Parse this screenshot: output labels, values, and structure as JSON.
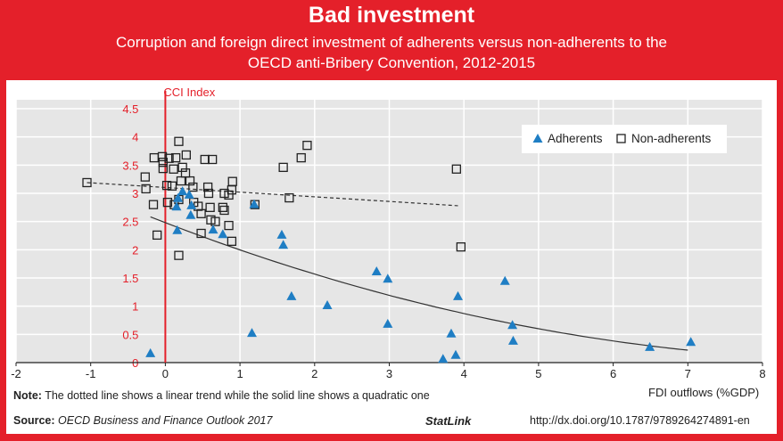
{
  "header": {
    "title": "Bad investment",
    "subtitle_line1": "Corruption and foreign direct investment of adherents versus non-adherents to the",
    "subtitle_line2": "OECD anti-Bribery Convention, 2012-2015"
  },
  "footer": {
    "note_label": "Note:",
    "note_text": " The dotted line shows a linear trend while the solid line shows a quadratic one",
    "source_label": "Source:",
    "source_text": " OECD Business and Finance Outlook 2017",
    "statlink": "StatLink",
    "doi": "http://dx.doi.org/10.1787/9789264274891-en"
  },
  "colors": {
    "frame": "#e4202a",
    "adherents": "#1f7ec4",
    "non_adherents": "#222222",
    "plot_bg": "#e6e6e6",
    "y_axis": "#e4202a"
  },
  "chart_data": {
    "type": "scatter",
    "xlabel": "FDI outflows (%GDP)",
    "ylabel": "CCI Index",
    "xlim": [
      -2,
      8
    ],
    "ylim": [
      0,
      4.5
    ],
    "x_ticks": [
      "-2",
      "-1",
      "0",
      "1",
      "2",
      "3",
      "4",
      "5",
      "6",
      "7",
      "8"
    ],
    "y_ticks": [
      "0",
      "0.5",
      "1",
      "1.5",
      "2",
      "2.5",
      "3",
      "3.5",
      "4",
      "4.5"
    ],
    "grid": true,
    "legend_placement": "top-right",
    "series": [
      {
        "name": "Adherents",
        "marker": "triangle",
        "points": [
          [
            -0.2,
            0.16
          ],
          [
            0.16,
            2.34
          ],
          [
            0.23,
            3.03
          ],
          [
            0.32,
            2.97
          ],
          [
            0.17,
            2.91
          ],
          [
            0.15,
            2.76
          ],
          [
            0.34,
            2.61
          ],
          [
            0.35,
            2.78
          ],
          [
            0.64,
            2.35
          ],
          [
            0.77,
            2.27
          ],
          [
            1.19,
            2.8
          ],
          [
            1.16,
            0.52
          ],
          [
            1.56,
            2.26
          ],
          [
            1.58,
            2.08
          ],
          [
            1.69,
            1.17
          ],
          [
            2.17,
            1.01
          ],
          [
            2.83,
            1.61
          ],
          [
            2.98,
            1.48
          ],
          [
            2.98,
            0.68
          ],
          [
            3.72,
            0.06
          ],
          [
            3.83,
            0.51
          ],
          [
            3.89,
            0.13
          ],
          [
            3.92,
            1.17
          ],
          [
            4.55,
            1.44
          ],
          [
            4.65,
            0.66
          ],
          [
            4.66,
            0.38
          ],
          [
            6.49,
            0.27
          ],
          [
            7.04,
            0.36
          ]
        ]
      },
      {
        "name": "Non-adherents",
        "marker": "square",
        "points": [
          [
            -1.05,
            3.19
          ],
          [
            -0.27,
            3.29
          ],
          [
            -0.26,
            3.08
          ],
          [
            -0.16,
            2.8
          ],
          [
            -0.11,
            2.26
          ],
          [
            -0.15,
            3.63
          ],
          [
            -0.04,
            3.65
          ],
          [
            -0.03,
            3.55
          ],
          [
            -0.03,
            3.44
          ],
          [
            0.05,
            3.62
          ],
          [
            0.14,
            3.63
          ],
          [
            0.11,
            3.43
          ],
          [
            0.18,
            3.92
          ],
          [
            0.28,
            3.68
          ],
          [
            0.23,
            3.46
          ],
          [
            0.27,
            3.36
          ],
          [
            0.02,
            3.14
          ],
          [
            0.09,
            3.13
          ],
          [
            0.21,
            3.22
          ],
          [
            0.33,
            3.22
          ],
          [
            0.37,
            3.11
          ],
          [
            0.03,
            2.84
          ],
          [
            0.12,
            2.8
          ],
          [
            0.18,
            2.89
          ],
          [
            0.38,
            2.84
          ],
          [
            0.44,
            2.77
          ],
          [
            0.48,
            2.64
          ],
          [
            0.53,
            3.6
          ],
          [
            0.63,
            3.6
          ],
          [
            0.57,
            3.11
          ],
          [
            0.58,
            3.0
          ],
          [
            0.6,
            2.75
          ],
          [
            0.61,
            2.53
          ],
          [
            0.67,
            2.5
          ],
          [
            0.77,
            2.75
          ],
          [
            0.79,
            2.7
          ],
          [
            0.79,
            3.0
          ],
          [
            0.85,
            2.97
          ],
          [
            0.89,
            3.06
          ],
          [
            0.9,
            3.21
          ],
          [
            0.85,
            2.43
          ],
          [
            0.48,
            2.29
          ],
          [
            0.89,
            2.15
          ],
          [
            0.18,
            1.9
          ],
          [
            1.2,
            2.8
          ],
          [
            1.58,
            3.46
          ],
          [
            1.66,
            2.92
          ],
          [
            1.82,
            3.63
          ],
          [
            1.9,
            3.85
          ],
          [
            3.9,
            3.43
          ],
          [
            3.96,
            2.05
          ]
        ]
      }
    ],
    "trend_lines": [
      {
        "kind": "linear",
        "style": "dotted",
        "from": [
          -1.05,
          3.19
        ],
        "to": [
          3.92,
          2.78
        ]
      },
      {
        "kind": "quadratic",
        "style": "solid",
        "x_range": [
          -0.2,
          7.0
        ],
        "coefficients": [
          2.48,
          -0.509,
          0.0266
        ]
      }
    ]
  }
}
